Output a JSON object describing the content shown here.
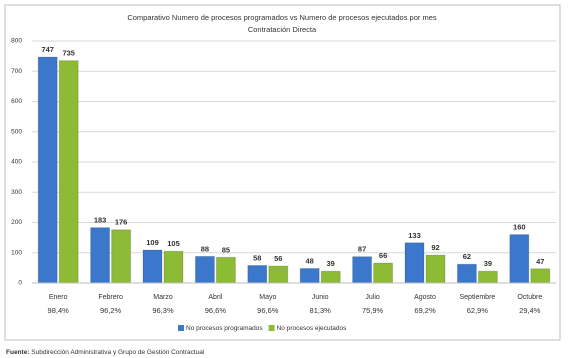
{
  "chart_data": {
    "type": "bar",
    "title": "Comparativo Numero de procesos programados vs Numero de procesos ejecutados por mes",
    "subtitle": "Contratación Directa",
    "categories": [
      "Enero",
      "Febrero",
      "Marzo",
      "Abril",
      "Mayo",
      "Junio",
      "Julio",
      "Agosto",
      "Septiembre",
      "Octubre"
    ],
    "category_sublabels": [
      "98,4%",
      "96,2%",
      "96,3%",
      "96,6%",
      "96,6%",
      "81,3%",
      "75,9%",
      "69,2%",
      "62,9%",
      "29,4%"
    ],
    "series": [
      {
        "name": "No procesos programados",
        "color": "#3b78cc",
        "values": [
          747,
          183,
          109,
          88,
          58,
          48,
          87,
          133,
          62,
          160
        ]
      },
      {
        "name": "No procesos ejecutados",
        "color": "#8dbb35",
        "values": [
          735,
          176,
          105,
          85,
          56,
          39,
          66,
          92,
          39,
          47
        ]
      }
    ],
    "ylim": [
      0,
      800
    ],
    "yticks": [
      0,
      100,
      200,
      300,
      400,
      500,
      600,
      700,
      800
    ],
    "grid": true,
    "legend": "bottom"
  },
  "footer": {
    "label": "Fuente:",
    "text": "Subdirección Administrativa y Grupo de Gestión Contractual"
  }
}
